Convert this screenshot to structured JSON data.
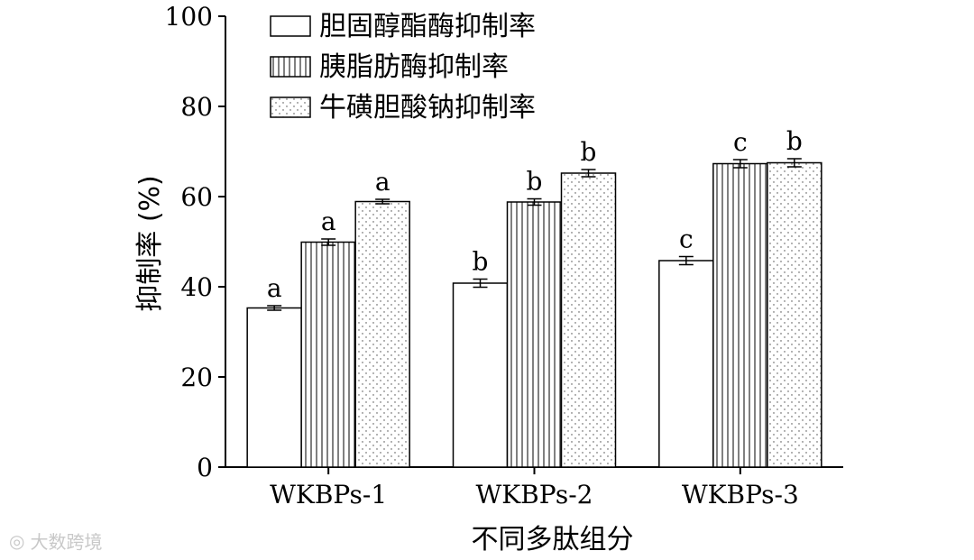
{
  "chart_data": {
    "type": "bar",
    "xlabel": "不同多肽组分",
    "ylabel": "抑制率 (%)",
    "ylim": [
      0,
      100
    ],
    "yticks": [
      0,
      20,
      40,
      60,
      80,
      100
    ],
    "grid": false,
    "legend_position": "top-left",
    "categories": [
      "WKBPs-1",
      "WKBPs-2",
      "WKBPs-3"
    ],
    "series": [
      {
        "name": "胆固醇酯酶抑制率",
        "pattern": "plain",
        "values": [
          35.3,
          40.8,
          45.8
        ],
        "errors": [
          0.5,
          0.9,
          0.9
        ],
        "labels": [
          "a",
          "b",
          "c"
        ]
      },
      {
        "name": "胰脂肪酶抑制率",
        "pattern": "vertical-lines",
        "values": [
          49.9,
          58.8,
          67.3
        ],
        "errors": [
          0.7,
          0.7,
          0.9
        ],
        "labels": [
          "a",
          "b",
          "c"
        ]
      },
      {
        "name": "牛磺胆酸钠抑制率",
        "pattern": "dots",
        "values": [
          58.9,
          65.2,
          67.5
        ],
        "errors": [
          0.5,
          0.8,
          0.9
        ],
        "labels": [
          "a",
          "b",
          "b"
        ]
      }
    ]
  },
  "watermark": {
    "icon": "wechat-icon",
    "text": "大数跨境"
  }
}
